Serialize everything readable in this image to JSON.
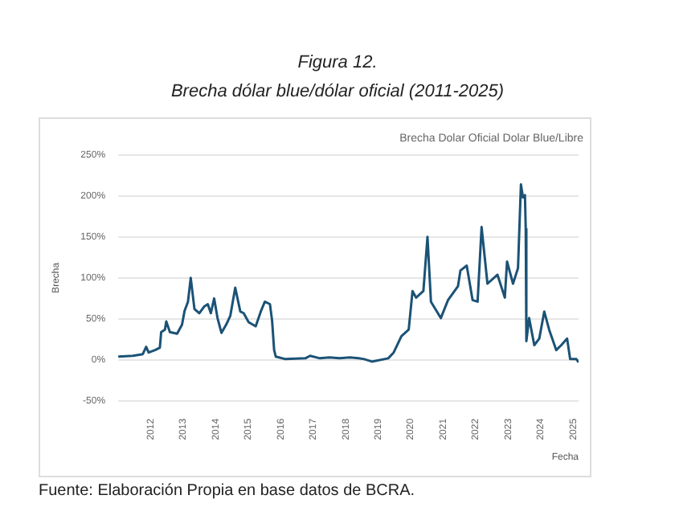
{
  "chart_data": {
    "type": "line",
    "title": "Brecha Dolar Oficial Dolar Blue/Libre",
    "xlabel": "Fecha",
    "ylabel": "Brecha",
    "annotations": [
      "Figura 12.",
      "Brecha dólar blue/dólar oficial (2011-2025)",
      "Fuente: Elaboración Propia en base datos de BCRA."
    ],
    "x": [
      "2011-01-01",
      "2011-06-14",
      "2011-10-04",
      "2011-11-11",
      "2011-12-09",
      "2012-02-19",
      "2012-04-13",
      "2012-04-28",
      "2012-06-09",
      "2012-06-24",
      "2012-08-04",
      "2012-10-24",
      "2012-12-18",
      "2013-01-16",
      "2013-02-23",
      "2013-03-26",
      "2013-05-07",
      "2013-07-01",
      "2013-08-23",
      "2013-10-04",
      "2013-11-07",
      "2013-12-14",
      "2014-01-21",
      "2014-03-06",
      "2014-04-28",
      "2014-06-14",
      "2014-08-08",
      "2014-10-04",
      "2014-11-11",
      "2015-01-06",
      "2015-03-26",
      "2015-05-22",
      "2015-07-06",
      "2015-09-02",
      "2015-09-26",
      "2015-10-19",
      "2015-11-07",
      "2016-02-23",
      "2016-10-04",
      "2016-11-26",
      "2017-03-17",
      "2017-07-01",
      "2017-10-24",
      "2018-02-15",
      "2018-05-26",
      "2018-07-26",
      "2018-10-21",
      "2019-04-23",
      "2019-06-23",
      "2019-09-18",
      "2019-12-09",
      "2020-01-21",
      "2020-03-01",
      "2020-05-22",
      "2020-07-07",
      "2020-08-15",
      "2020-12-04",
      "2021-02-23",
      "2021-06-15",
      "2021-07-12",
      "2021-09-21",
      "2021-11-26",
      "2022-01-21",
      "2022-03-07",
      "2022-05-12",
      "2022-09-01",
      "2022-11-23",
      "2022-12-18",
      "2023-02-23",
      "2023-04-20",
      "2023-05-23",
      "2023-06-15",
      "2023-07-07",
      "2023-07-16",
      "2023-07-23",
      "2023-08-23",
      "2023-10-20",
      "2023-12-15",
      "2024-02-09",
      "2024-04-04",
      "2024-06-23",
      "2024-08-18",
      "2024-10-23",
      "2024-11-26",
      "2025-02-04",
      "2025-03-01"
    ],
    "series": [
      {
        "color": "#1b5276",
        "values": [
          4,
          5,
          7,
          16,
          9,
          12,
          15,
          34,
          37,
          47,
          34,
          32,
          43,
          60,
          71,
          100,
          62,
          57,
          65,
          68,
          57,
          75,
          51,
          33,
          43,
          54,
          88,
          59,
          57,
          46,
          41,
          59,
          71,
          68,
          48,
          12,
          4,
          1,
          2,
          5,
          2,
          3,
          2,
          3,
          2,
          1,
          -2,
          2,
          9,
          29,
          37,
          84,
          76,
          84,
          150,
          71,
          51,
          73,
          90,
          109,
          115,
          73,
          71,
          162,
          93,
          104,
          76,
          120,
          93,
          112,
          214,
          198,
          201,
          160,
          23,
          51,
          18,
          26,
          59,
          37,
          12,
          18,
          26,
          1,
          1,
          -3
        ]
      }
    ],
    "xlim": [
      "2011-01-01",
      "2025-03-01"
    ],
    "ylim": [
      -50,
      250
    ],
    "yticks": [
      {
        "value": -50,
        "label": "-50%"
      },
      {
        "value": 0,
        "label": "0%"
      },
      {
        "value": 50,
        "label": "50%"
      },
      {
        "value": 100,
        "label": "100%"
      },
      {
        "value": 150,
        "label": "150%"
      },
      {
        "value": 200,
        "label": "200%"
      },
      {
        "value": 250,
        "label": "250%"
      }
    ],
    "xticks": [
      {
        "value": "2012-01-01",
        "label": "2012"
      },
      {
        "value": "2013-01-01",
        "label": "2013"
      },
      {
        "value": "2014-01-01",
        "label": "2014"
      },
      {
        "value": "2015-01-01",
        "label": "2015"
      },
      {
        "value": "2016-01-01",
        "label": "2016"
      },
      {
        "value": "2017-01-01",
        "label": "2017"
      },
      {
        "value": "2018-01-01",
        "label": "2018"
      },
      {
        "value": "2019-01-01",
        "label": "2019"
      },
      {
        "value": "2020-01-01",
        "label": "2020"
      },
      {
        "value": "2021-01-01",
        "label": "2021"
      },
      {
        "value": "2022-01-01",
        "label": "2022"
      },
      {
        "value": "2023-01-01",
        "label": "2023"
      },
      {
        "value": "2024-01-01",
        "label": "2024"
      },
      {
        "value": "2025-01-01",
        "label": "2025"
      }
    ],
    "grid": "y",
    "legend": false,
    "marker": "none",
    "line_style": "solid"
  }
}
